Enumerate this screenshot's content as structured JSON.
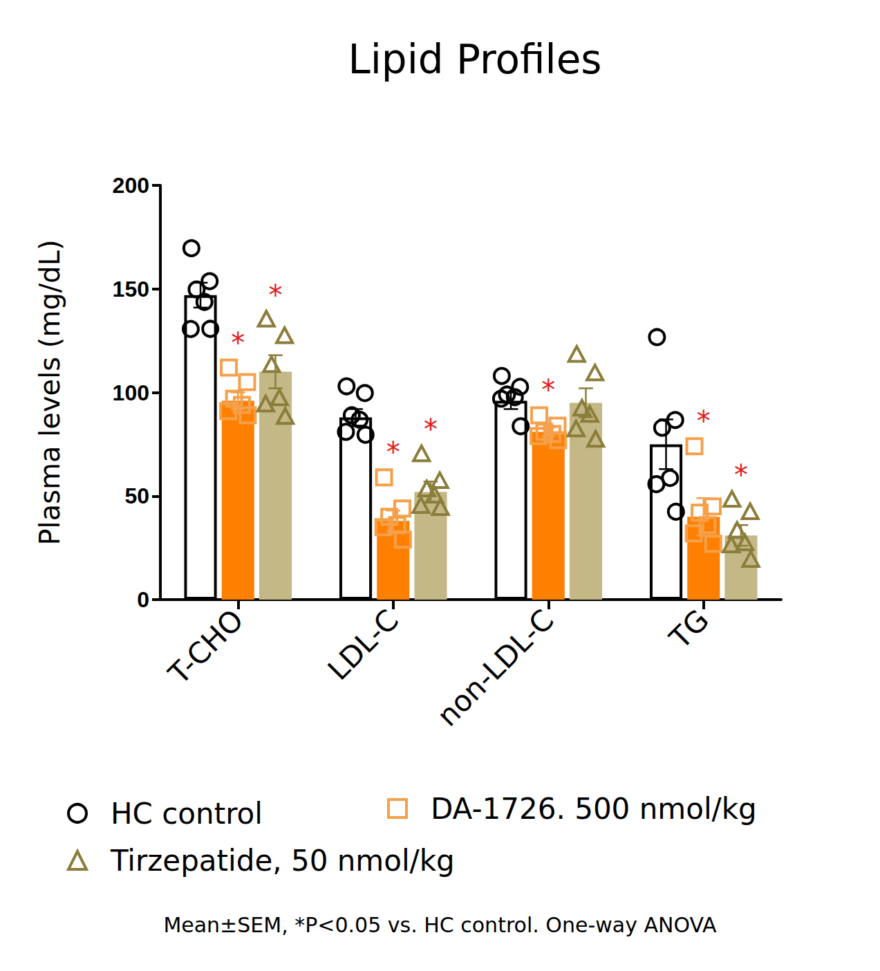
{
  "chart_data": {
    "type": "bar",
    "title": "Lipid Profiles",
    "y_label": "Plasma levels (mg/dL)",
    "footnote": "Mean±SEM, *P<0.05 vs. HC control. One-way ANOVA",
    "categories": [
      "T-CHO",
      "LDL-C",
      "non-LDL-C",
      "TG"
    ],
    "ylim": [
      0,
      200
    ],
    "yticks": [
      0,
      50,
      100,
      150,
      200
    ],
    "grid": false,
    "significance_marker": "*",
    "series": [
      {
        "name": "HC control",
        "color": "#ffffff",
        "marker": "circle",
        "values": [
          147,
          88,
          96,
          75
        ],
        "errors": [
          6,
          4,
          4,
          12
        ],
        "points": [
          [
            170,
            154,
            150,
            144,
            131,
            131
          ],
          [
            103,
            100,
            89,
            87,
            81,
            80
          ],
          [
            108,
            103,
            99,
            98,
            97,
            84
          ],
          [
            127,
            87,
            83,
            59,
            56,
            43
          ]
        ],
        "significant": [
          false,
          false,
          false,
          false
        ]
      },
      {
        "name": "DA-1726. 500 nmol/kg",
        "color": "#ff8000",
        "marker": "square",
        "values": [
          96,
          38,
          81,
          40
        ],
        "errors": [
          4,
          5,
          2,
          9
        ],
        "points": [
          [
            112,
            105,
            97,
            94,
            91,
            89
          ],
          [
            59,
            44,
            40,
            36,
            35,
            29
          ],
          [
            89,
            84,
            81,
            80,
            79,
            77
          ],
          [
            74,
            45,
            42,
            36,
            32,
            27
          ]
        ],
        "significant": [
          true,
          true,
          true,
          true
        ]
      },
      {
        "name": "Tirzepatide, 50 nmol/kg",
        "color": "#c3b886",
        "marker": "triangle",
        "values": [
          110,
          52,
          95,
          31
        ],
        "errors": [
          8,
          5,
          7,
          5
        ],
        "points": [
          [
            135,
            127,
            113,
            97,
            94,
            88
          ],
          [
            70,
            57,
            53,
            50,
            45,
            44
          ],
          [
            118,
            109,
            92,
            89,
            82,
            77
          ],
          [
            48,
            42,
            33,
            27,
            26,
            19
          ]
        ],
        "significant": [
          true,
          true,
          false,
          true
        ]
      }
    ]
  }
}
